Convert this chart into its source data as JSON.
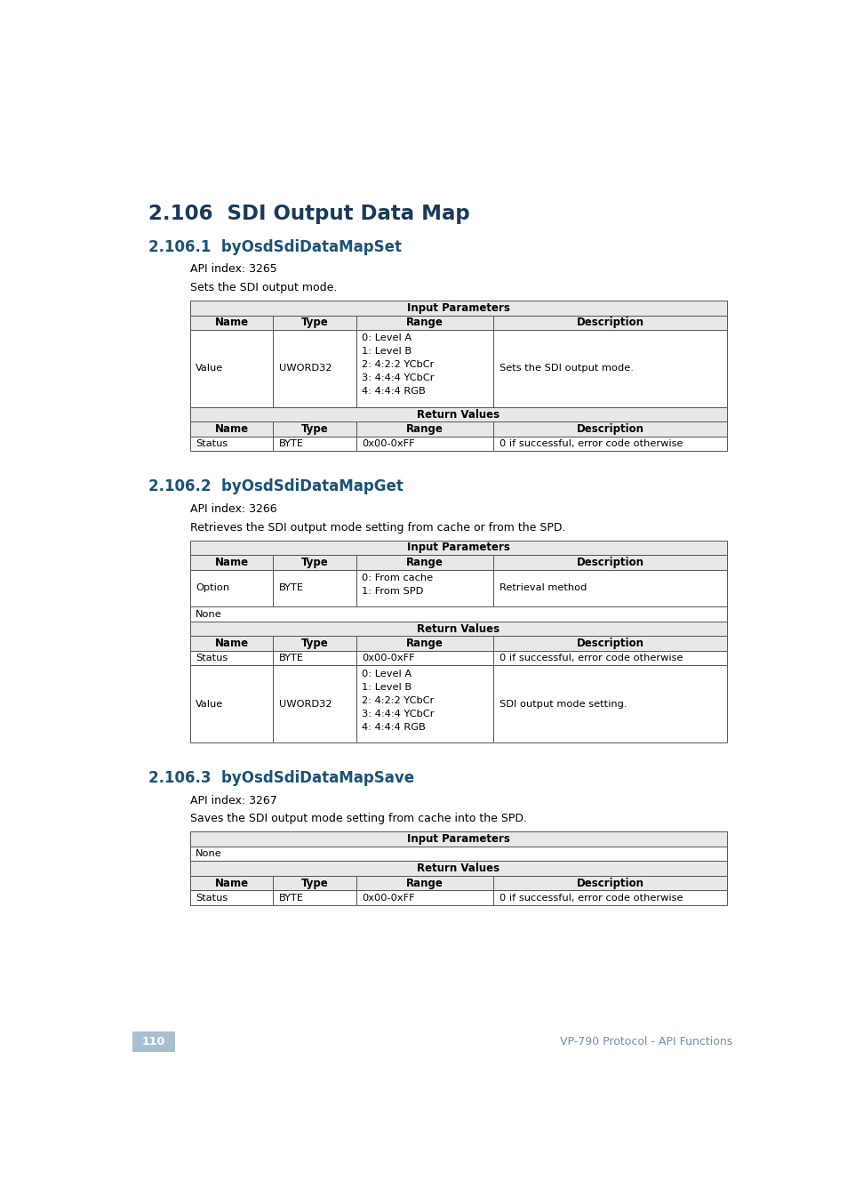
{
  "bg_color": "#ffffff",
  "title1": "2.106  SDI Output Data Map",
  "title1_color": "#1a3a5c",
  "section1_title": "2.106.1  byOsdSdiDataMapSet",
  "section1_color": "#1a5276",
  "section1_api": "API index: 3265",
  "section1_desc": "Sets the SDI output mode.",
  "section2_title": "2.106.2  byOsdSdiDataMapGet",
  "section2_color": "#1a5276",
  "section2_api": "API index: 3266",
  "section2_desc": "Retrieves the SDI output mode setting from cache or from the SPD.",
  "section3_title": "2.106.3  byOsdSdiDataMapSave",
  "section3_color": "#1a5276",
  "section3_api": "API index: 3267",
  "section3_desc": "Saves the SDI output mode setting from cache into the SPD.",
  "table_header_bg": "#e8e8e8",
  "table_border": "#555555",
  "page_num": "110",
  "page_num_bg": "#a8bfd0",
  "footer_text": "VP-790 Protocol - API Functions",
  "footer_color": "#7090b0",
  "col_rel": [
    0.155,
    0.155,
    0.255,
    0.435
  ]
}
